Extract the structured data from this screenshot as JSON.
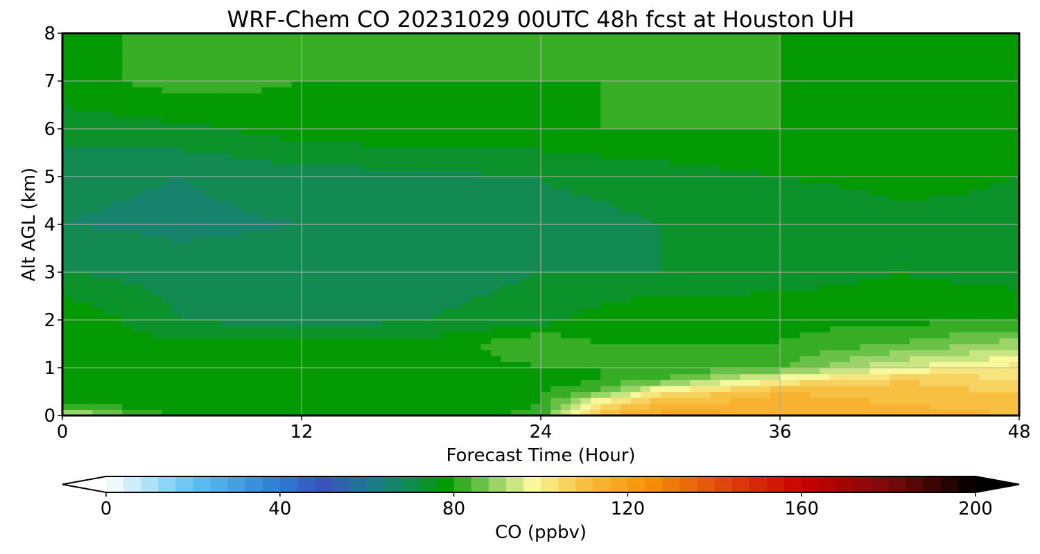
{
  "chart_data": {
    "type": "heatmap",
    "title": "WRF-Chem CO  20231029 00UTC 48h fcst at Houston UH",
    "xlabel": "Forecast Time (Hour)",
    "ylabel": "Alt AGL (km)",
    "xlim": [
      0,
      48
    ],
    "ylim": [
      0,
      8
    ],
    "x_ticks": [
      0,
      12,
      24,
      36,
      48
    ],
    "y_ticks": [
      0,
      1,
      2,
      3,
      4,
      5,
      6,
      7,
      8
    ],
    "grid": true,
    "x": [
      0,
      6,
      12,
      18,
      24,
      27,
      30,
      36,
      42,
      48
    ],
    "y": [
      0,
      0.25,
      0.5,
      0.75,
      1,
      1.5,
      2,
      3,
      4,
      5,
      6,
      7,
      8
    ],
    "z": [
      [
        95,
        78,
        76,
        76,
        82,
        112,
        118,
        116,
        114,
        112
      ],
      [
        80,
        76,
        76,
        76,
        80,
        104,
        112,
        114,
        112,
        110
      ],
      [
        78,
        76,
        76,
        76,
        80,
        84,
        102,
        112,
        110,
        108
      ],
      [
        77,
        76,
        76,
        76,
        78,
        80,
        84,
        100,
        108,
        104
      ],
      [
        77,
        76,
        76,
        76,
        80,
        80,
        80,
        84,
        96,
        102
      ],
      [
        78,
        77,
        77,
        77,
        84,
        80,
        80,
        80,
        84,
        90
      ],
      [
        80,
        72,
        70,
        72,
        74,
        78,
        80,
        79,
        79,
        80
      ],
      [
        72,
        70,
        70,
        70,
        72,
        72,
        72,
        74,
        76,
        74
      ],
      [
        68,
        67,
        68,
        69,
        71,
        71,
        72,
        73,
        75,
        75
      ],
      [
        69,
        68,
        70,
        71,
        72,
        73,
        74,
        76,
        77,
        76
      ],
      [
        74,
        75,
        78,
        79,
        79,
        80,
        80,
        80,
        78,
        76
      ],
      [
        78,
        82,
        80,
        80,
        80,
        80,
        80,
        80,
        78,
        76
      ],
      [
        80,
        80,
        80,
        80,
        80,
        80,
        80,
        80,
        78,
        76
      ]
    ],
    "colorbar": {
      "label": "CO  (ppbv)",
      "min": 0,
      "max": 200,
      "ticks": [
        0,
        40,
        80,
        120,
        160,
        200
      ],
      "extend": "both",
      "levels": 50,
      "stops": [
        {
          "v": 0,
          "c": "#ffffff"
        },
        {
          "v": 20,
          "c": "#5ec2f2"
        },
        {
          "v": 40,
          "c": "#2b7bd0"
        },
        {
          "v": 50,
          "c": "#3a52ba"
        },
        {
          "v": 60,
          "c": "#1e7896"
        },
        {
          "v": 70,
          "c": "#138a52"
        },
        {
          "v": 78,
          "c": "#049a04"
        },
        {
          "v": 90,
          "c": "#9cd46a"
        },
        {
          "v": 98,
          "c": "#f7f79c"
        },
        {
          "v": 110,
          "c": "#f8c040"
        },
        {
          "v": 125,
          "c": "#f59004"
        },
        {
          "v": 140,
          "c": "#e05010"
        },
        {
          "v": 160,
          "c": "#cc0000"
        },
        {
          "v": 180,
          "c": "#7a0a0a"
        },
        {
          "v": 200,
          "c": "#000000"
        }
      ]
    }
  }
}
